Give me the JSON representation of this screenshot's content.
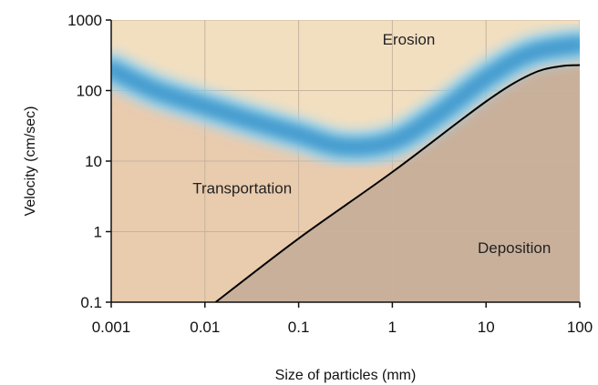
{
  "chart_data": {
    "type": "area",
    "title": "",
    "xlabel": "Size of particles (mm)",
    "ylabel": "Velocity (cm/sec)",
    "x_scale": "log",
    "y_scale": "log",
    "xlim": [
      0.001,
      100
    ],
    "ylim": [
      0.1,
      1000
    ],
    "grid": true,
    "x_ticks": [
      0.001,
      0.01,
      0.1,
      1,
      10,
      100
    ],
    "y_ticks": [
      0.1,
      1,
      10,
      100,
      1000
    ],
    "x_tick_labels": [
      "0.001",
      "0.01",
      "0.1",
      "1",
      "10",
      "100"
    ],
    "y_tick_labels": [
      "0.1",
      "1",
      "10",
      "100",
      "1000"
    ],
    "regions": [
      {
        "label": "Erosion",
        "at": [
          1.5,
          450
        ]
      },
      {
        "label": "Transportation",
        "at": [
          0.025,
          3.5
        ]
      },
      {
        "label": "Deposition",
        "at": [
          20,
          0.5
        ]
      }
    ],
    "series": [
      {
        "role": "erosion-curve",
        "color": "#4aa8d8",
        "x": [
          0.001,
          0.003,
          0.01,
          0.03,
          0.1,
          0.3,
          1,
          3,
          10,
          30,
          100
        ],
        "y": [
          200,
          100,
          60,
          38,
          24,
          16,
          19,
          45,
          150,
          340,
          450
        ]
      },
      {
        "role": "deposition-curve",
        "color": "#000000",
        "x": [
          0.013,
          0.1,
          1,
          10,
          30,
          60,
          100
        ],
        "y": [
          0.1,
          0.8,
          7,
          70,
          170,
          220,
          230
        ]
      }
    ],
    "colors": {
      "erosion": "#f2dfc0",
      "transportation": "#e9cbae",
      "deposition": "#c9b09b",
      "grid": "#c8b39f"
    }
  }
}
